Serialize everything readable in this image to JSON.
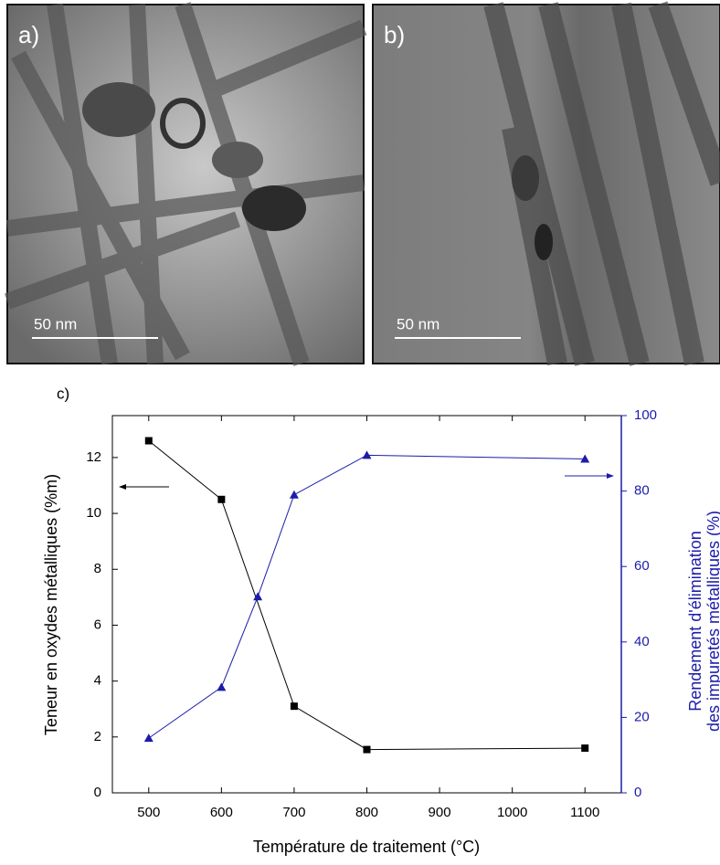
{
  "figure": {
    "panels": [
      {
        "label": "a)",
        "scale": "50 nm"
      },
      {
        "label": "b)",
        "scale": "50 nm"
      }
    ],
    "chart_label": "c)"
  },
  "chart_data": {
    "type": "line",
    "x_label": "Température de traitement (°C)",
    "y_label": "Teneur en oxydes métalliques  (%m)",
    "y2_label": [
      "Rendement d'élimination",
      "des impuretés métalliques (%)"
    ],
    "xlim": [
      450,
      1150
    ],
    "xticks": [
      500,
      600,
      700,
      800,
      900,
      1000,
      1100
    ],
    "ylim": [
      0,
      13.5
    ],
    "yticks": [
      0,
      2,
      4,
      6,
      8,
      10,
      12
    ],
    "y2lim": [
      0,
      100
    ],
    "y2ticks": [
      0,
      20,
      40,
      60,
      80,
      100
    ],
    "y2color": "#1c1caa",
    "series": [
      {
        "color": "#000000",
        "marker": "square",
        "x": [
          500,
          600,
          700,
          800,
          1100
        ],
        "values": [
          12.6,
          10.5,
          3.1,
          1.55,
          1.6
        ]
      },
      {
        "color": "#1c1caa",
        "marker": "triangle",
        "axis": "y2",
        "x": [
          500,
          600,
          650,
          700,
          800,
          1100
        ],
        "values": [
          14.5,
          28,
          52,
          79,
          89.5,
          88.5
        ]
      }
    ]
  }
}
